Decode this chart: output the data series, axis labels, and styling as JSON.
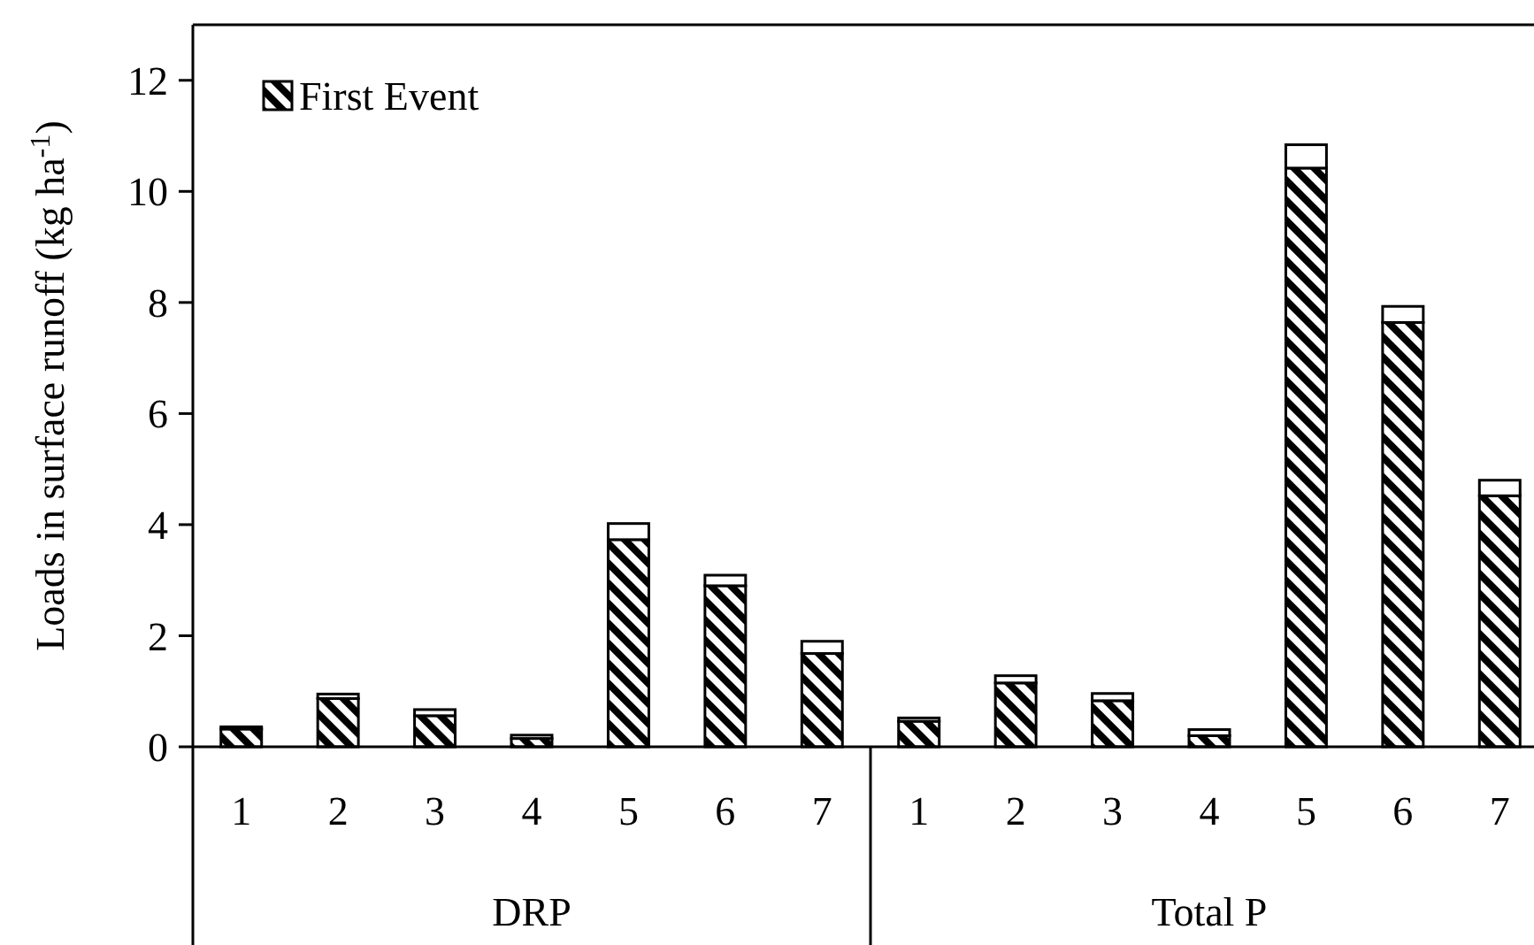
{
  "chart_data": {
    "type": "bar",
    "stacked": true,
    "ylabel": "Loads in surface runoff (kg ha$^{-1}$)",
    "categories": [
      "1",
      "2",
      "3",
      "4",
      "5",
      "6",
      "7",
      "1",
      "2",
      "3",
      "4",
      "5",
      "6",
      "7"
    ],
    "series": [
      {
        "name": "First Event",
        "color": "#000000",
        "values": [
          0.32,
          0.87,
          0.56,
          0.15,
          3.73,
          2.9,
          1.68,
          0.46,
          1.15,
          0.83,
          0.2,
          10.42,
          7.64,
          4.52
        ]
      },
      {
        "color": "#ffffff",
        "values": [
          0.04,
          0.08,
          0.11,
          0.06,
          0.29,
          0.19,
          0.22,
          0.06,
          0.13,
          0.13,
          0.11,
          0.42,
          0.29,
          0.28
        ]
      }
    ],
    "ylim": [
      0,
      13
    ],
    "yticks": [
      0,
      2,
      4,
      6,
      8,
      10,
      12
    ],
    "grid": false,
    "legend": "top left",
    "annotations": [
      "DRP",
      "Total P"
    ]
  }
}
